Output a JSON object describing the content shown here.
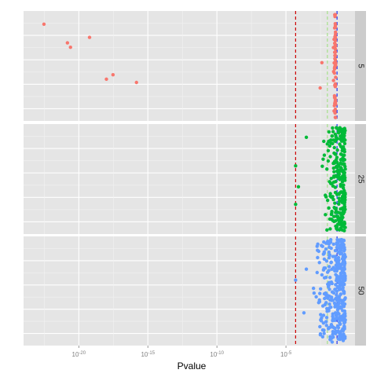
{
  "chart_data": {
    "type": "scatter",
    "xlabel": "Pvalue",
    "ylabel": "",
    "x_scale": "log10",
    "xlim": [
      1e-24,
      1
    ],
    "x_ticks": [
      {
        "value": 1e-20,
        "base": "10",
        "exp": "-20"
      },
      {
        "value": 1e-15,
        "base": "10",
        "exp": "-15"
      },
      {
        "value": 1e-10,
        "base": "10",
        "exp": "-10"
      },
      {
        "value": 1e-05,
        "base": "10",
        "exp": "-5"
      }
    ],
    "grid": true,
    "facet_labels": [
      "5",
      "25",
      "50"
    ],
    "reference_lines": [
      {
        "x": 5e-05,
        "color": "#cc0000",
        "style": "dashed"
      },
      {
        "x": 0.01,
        "color": "#a6e08a",
        "style": "dashed"
      },
      {
        "x": 0.05,
        "color": "#2233ee",
        "style": "dashed"
      }
    ],
    "panels": [
      {
        "facet": "5",
        "color": "#f8766d",
        "sparse_points": [
          {
            "x": 3e-23,
            "y": 0.88
          },
          {
            "x": 1.5e-21,
            "y": 0.71
          },
          {
            "x": 2.5e-21,
            "y": 0.67
          },
          {
            "x": 6e-20,
            "y": 0.76
          },
          {
            "x": 1e-18,
            "y": 0.38
          },
          {
            "x": 3e-18,
            "y": 0.42
          },
          {
            "x": 1.5e-16,
            "y": 0.35
          },
          {
            "x": 0.004,
            "y": 0.53
          },
          {
            "x": 0.003,
            "y": 0.3
          }
        ],
        "dense_band": {
          "xmin": 0.025,
          "xmax": 0.04,
          "count": 70
        }
      },
      {
        "facet": "25",
        "color": "#00ba38",
        "sparse_points": [
          {
            "x": 5e-05,
            "y": 0.62
          },
          {
            "x": 5e-05,
            "y": 0.27
          },
          {
            "x": 8e-05,
            "y": 0.43
          },
          {
            "x": 0.0003,
            "y": 0.88
          }
        ],
        "dense_band": {
          "xmin": 0.002,
          "xmax": 0.2,
          "count": 260
        }
      },
      {
        "facet": "50",
        "color": "#619cff",
        "sparse_points": [
          {
            "x": 5e-05,
            "y": 0.6
          },
          {
            "x": 0.0002,
            "y": 0.3
          },
          {
            "x": 0.0003,
            "y": 0.7
          }
        ],
        "dense_band": {
          "xmin": 0.0005,
          "xmax": 0.2,
          "count": 380
        }
      }
    ]
  }
}
